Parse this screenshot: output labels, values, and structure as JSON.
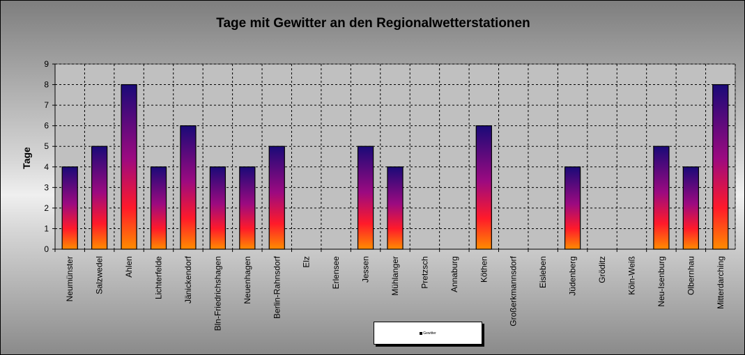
{
  "chart_data": {
    "type": "bar",
    "title": "Tage mit Gewitter  an den Regionalwetterstationen",
    "xlabel": "",
    "ylabel": "Tage",
    "ylim": [
      0,
      9
    ],
    "yticks": [
      0,
      1,
      2,
      3,
      4,
      5,
      6,
      7,
      8,
      9
    ],
    "grid": true,
    "legend_position": "bottom",
    "categories": [
      "Neumünster",
      "Salzwedel",
      "Ahlen",
      "Lichterfelde",
      "Jänickendorf",
      "Bln-Friedrichshagen",
      "Neuenhagen",
      "Berlin-Rahnsdorf",
      "Elz",
      "Erlensee",
      "Jessen",
      "Mühlanger",
      "Pretzsch",
      "Annaburg",
      "Köthen",
      "Großerkmannsdorf",
      "Eisleben",
      "Jüdenberg",
      "Gröditz",
      "Köln-Weiß",
      "Neu-Isenburg",
      "Olbernhau",
      "Mitterdarching"
    ],
    "series": [
      {
        "name": "Gewitter",
        "values": [
          4,
          5,
          8,
          4,
          6,
          4,
          4,
          5,
          0,
          0,
          5,
          4,
          0,
          0,
          6,
          0,
          0,
          4,
          0,
          0,
          5,
          4,
          8
        ]
      }
    ],
    "colors": {
      "plot_bg": "#c0c0c0",
      "bar_top": "#1a0a78",
      "bar_mid": "#9c0a80",
      "bar_low": "#ff1a2a",
      "bar_bottom": "#ff8c00"
    }
  }
}
